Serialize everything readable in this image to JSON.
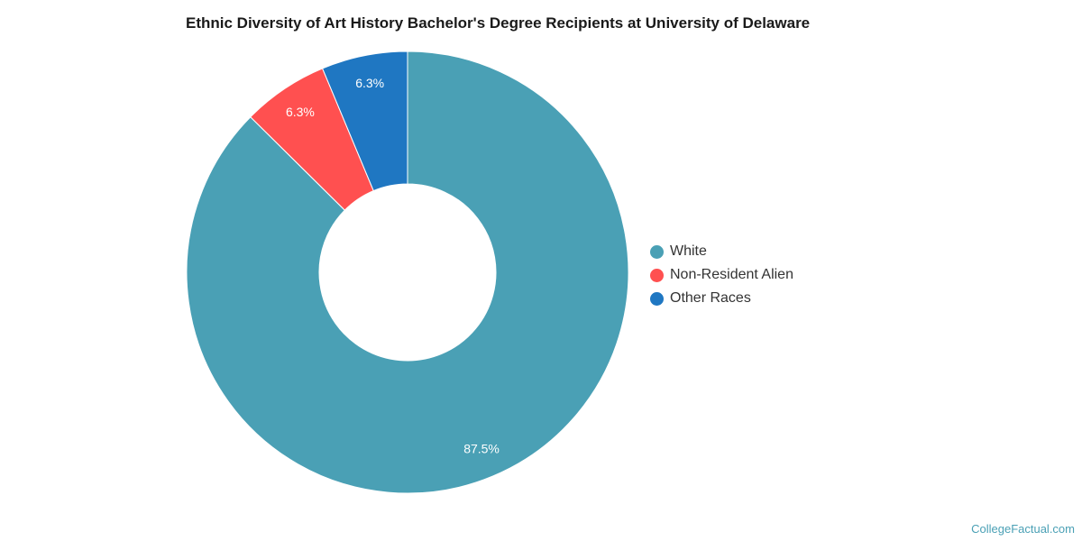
{
  "chart_data": {
    "type": "pie",
    "title": "Ethnic Diversity of Art History Bachelor's Degree Recipients at University of Delaware",
    "donut": true,
    "slices": [
      {
        "name": "White",
        "value": 87.5,
        "label": "87.5%",
        "color": "#4aa0b5"
      },
      {
        "name": "Non-Resident Alien",
        "value": 6.3,
        "label": "6.3%",
        "color": "#ff5050"
      },
      {
        "name": "Other Races",
        "value": 6.3,
        "label": "6.3%",
        "color": "#1f77c2"
      }
    ],
    "legend_position": "right"
  },
  "footer": {
    "source": "CollegeFactual.com"
  }
}
